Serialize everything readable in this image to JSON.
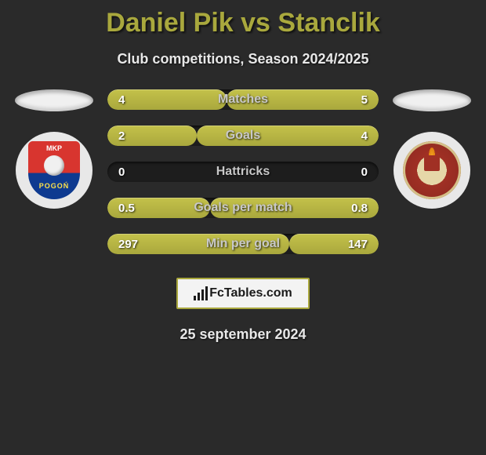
{
  "title": "Daniel Pik vs Stanclik",
  "subtitle": "Club competitions, Season 2024/2025",
  "date": "25 september 2024",
  "footer_logo_text": "FcTables.com",
  "colors": {
    "title": "#a9a83d",
    "bar_fill": "#a9a83d",
    "bar_track": "#1d1d1d",
    "background": "#2a2a2a",
    "text": "#e8e8e8"
  },
  "stats": [
    {
      "label": "Matches",
      "left_val": "4",
      "right_val": "5",
      "left_pct": 44,
      "right_pct": 56
    },
    {
      "label": "Goals",
      "left_val": "2",
      "right_val": "4",
      "left_pct": 33,
      "right_pct": 67
    },
    {
      "label": "Hattricks",
      "left_val": "0",
      "right_val": "0",
      "left_pct": 0,
      "right_pct": 0
    },
    {
      "label": "Goals per match",
      "left_val": "0.5",
      "right_val": "0.8",
      "left_pct": 38,
      "right_pct": 62
    },
    {
      "label": "Min per goal",
      "left_val": "297",
      "right_val": "147",
      "left_pct": 67,
      "right_pct": 33
    }
  ]
}
